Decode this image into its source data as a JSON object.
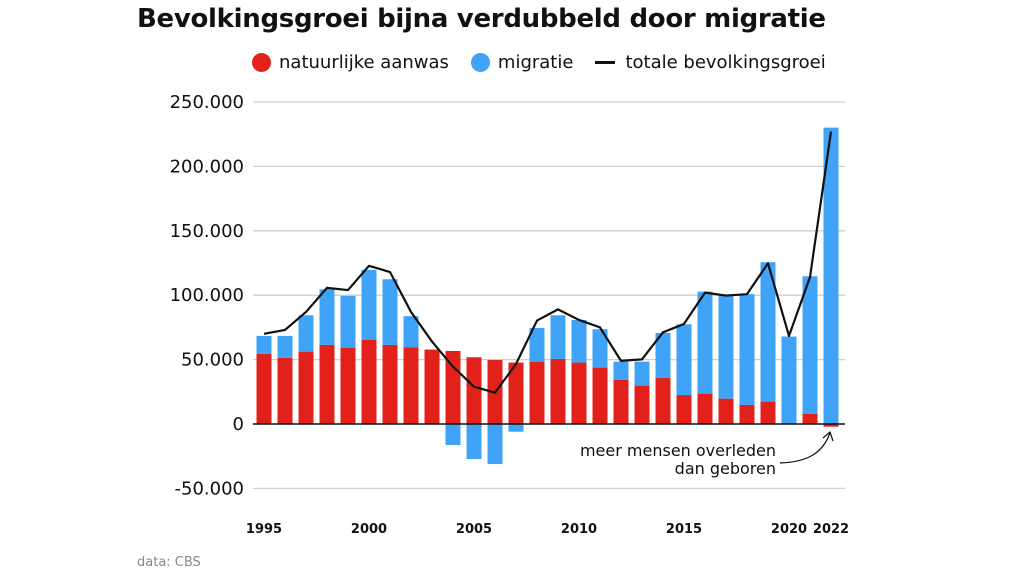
{
  "chart_data": {
    "type": "bar",
    "title": "Bevolkingsgroei bijna verdubbeld door migratie",
    "xlabel": "",
    "ylabel": "",
    "ylim": [
      -50000,
      250000
    ],
    "y_ticks": [
      250000,
      200000,
      150000,
      100000,
      50000,
      0,
      -50000
    ],
    "y_tick_labels": [
      "250.000",
      "200.000",
      "150.000",
      "100.000",
      "50.000",
      "0",
      "-50.000"
    ],
    "x": [
      1995,
      1996,
      1997,
      1998,
      1999,
      2000,
      2001,
      2002,
      2003,
      2004,
      2005,
      2006,
      2007,
      2008,
      2009,
      2010,
      2011,
      2012,
      2013,
      2014,
      2015,
      2016,
      2017,
      2018,
      2019,
      2020,
      2021,
      2022
    ],
    "x_tick_labels": [
      "1995",
      "2000",
      "2005",
      "2010",
      "2015",
      "2020",
      "2022"
    ],
    "stacked": true,
    "grid": true,
    "legend_position": "top",
    "series": [
      {
        "name": "natuurlijke aanwas",
        "type": "bar",
        "color": "#e3211b",
        "values": [
          54400,
          51300,
          56200,
          61400,
          59300,
          65500,
          61400,
          59600,
          57800,
          56700,
          51800,
          49700,
          47700,
          48400,
          50500,
          47700,
          43800,
          34400,
          29800,
          35700,
          22500,
          23600,
          19700,
          14800,
          17400,
          0,
          7800,
          -2100
        ]
      },
      {
        "name": "migratie",
        "type": "bar",
        "color": "#3fa3f7",
        "values": [
          14000,
          17100,
          28200,
          43200,
          40200,
          54200,
          51000,
          24100,
          0,
          -16300,
          -27200,
          -31100,
          -6000,
          26200,
          33900,
          33100,
          29800,
          14000,
          18600,
          35000,
          54900,
          79200,
          80000,
          86000,
          108200,
          67900,
          106900,
          230100
        ]
      },
      {
        "name": "totale bevolkingsgroei",
        "type": "line",
        "color": "#111111",
        "values": [
          70000,
          73000,
          87000,
          105700,
          104000,
          122800,
          118000,
          87000,
          64000,
          44500,
          29000,
          24300,
          46600,
          80300,
          89000,
          80800,
          75000,
          49000,
          50200,
          71200,
          77700,
          102000,
          99700,
          100800,
          124800,
          68400,
          114000,
          227000
        ]
      }
    ],
    "annotations": [
      {
        "text_line1": "meer mensen overleden",
        "text_line2": "dan geboren",
        "points_to": 2022
      }
    ],
    "source": "data: CBS"
  },
  "legend": {
    "items": [
      "natuurlijke aanwas",
      "migratie",
      "totale bevolkingsgroei"
    ]
  }
}
